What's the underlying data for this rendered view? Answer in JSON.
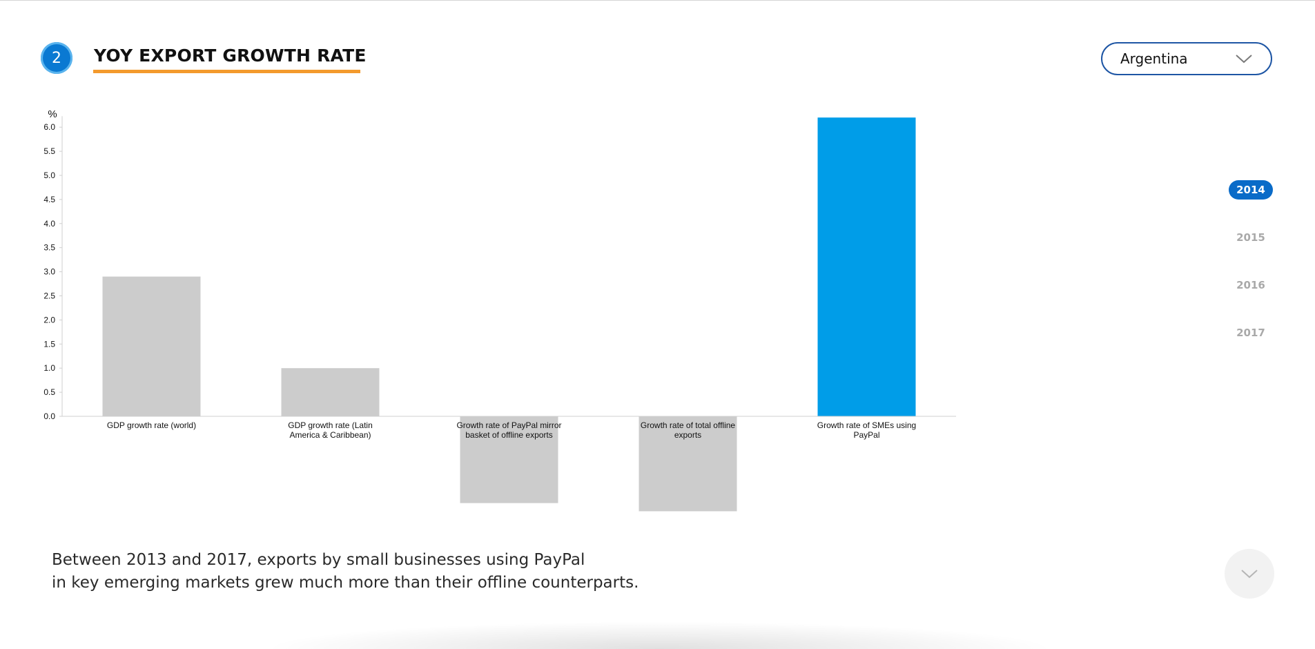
{
  "section": {
    "step_number": "2",
    "title": "YOY EXPORT GROWTH RATE"
  },
  "country_select": {
    "selected": "Argentina"
  },
  "years": [
    {
      "label": "2014",
      "active": true
    },
    {
      "label": "2015",
      "active": false
    },
    {
      "label": "2016",
      "active": false
    },
    {
      "label": "2017",
      "active": false
    }
  ],
  "caption": {
    "line1": "Between 2013 and 2017, exports by small businesses using PayPal",
    "line2": "in key emerging markets grew much more than their offline counterparts."
  },
  "colors": {
    "accent": "#0a6bc8",
    "highlight_bar": "#009de8",
    "bar": "#cccccc",
    "underline": "#f39a2d"
  },
  "icons": {
    "dropdown": "chevron-down-icon",
    "scroll": "chevron-down-icon"
  },
  "chart_data": {
    "type": "bar",
    "title": "",
    "xlabel": "",
    "ylabel": "%",
    "ylim": [
      -2.0,
      6.2
    ],
    "yticks": [
      "0.0",
      "0.5",
      "1.0",
      "1.5",
      "2.0",
      "2.5",
      "3.0",
      "3.5",
      "4.0",
      "4.5",
      "5.0",
      "5.5",
      "6.0"
    ],
    "grid": false,
    "categories": [
      [
        "GDP growth rate (world)"
      ],
      [
        "GDP growth rate (Latin",
        "America & Caribbean)"
      ],
      [
        "Growth rate of PayPal mirror",
        "basket of offline exports"
      ],
      [
        "Growth rate of total offline",
        "exports"
      ],
      [
        "Growth rate of SMEs using",
        "PayPal"
      ]
    ],
    "values": [
      2.9,
      1.0,
      -1.8,
      -1.97,
      6.2
    ],
    "highlight_index": 4
  }
}
